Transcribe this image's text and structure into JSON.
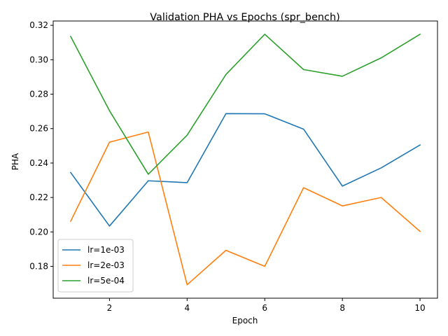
{
  "chart_data": {
    "type": "line",
    "title": "Validation PHA vs Epochs (spr_bench)",
    "xlabel": "Epoch",
    "ylabel": "PHA",
    "x": [
      1,
      2,
      3,
      4,
      5,
      6,
      7,
      8,
      9,
      10
    ],
    "xlim": [
      0.55,
      10.45
    ],
    "ylim": [
      0.1615,
      0.3225
    ],
    "xticks": [
      2,
      4,
      6,
      8,
      10
    ],
    "yticks": [
      0.18,
      0.2,
      0.22,
      0.24,
      0.26,
      0.28,
      0.3,
      0.32
    ],
    "grid": false,
    "legend_position": "lower-left",
    "series": [
      {
        "name": "lr=1e-03",
        "color": "#1f77b4",
        "values": [
          0.2345,
          0.2034,
          0.2297,
          0.2286,
          0.2687,
          0.2686,
          0.2597,
          0.2266,
          0.2372,
          0.2505
        ]
      },
      {
        "name": "lr=2e-03",
        "color": "#ff7f0e",
        "values": [
          0.2062,
          0.2521,
          0.258,
          0.1693,
          0.1893,
          0.18,
          0.2257,
          0.2151,
          0.22,
          0.2003
        ]
      },
      {
        "name": "lr=5e-04",
        "color": "#2ca02c",
        "values": [
          0.3135,
          0.2704,
          0.2335,
          0.2562,
          0.2914,
          0.3148,
          0.2943,
          0.2904,
          0.3011,
          0.3148
        ]
      }
    ]
  }
}
